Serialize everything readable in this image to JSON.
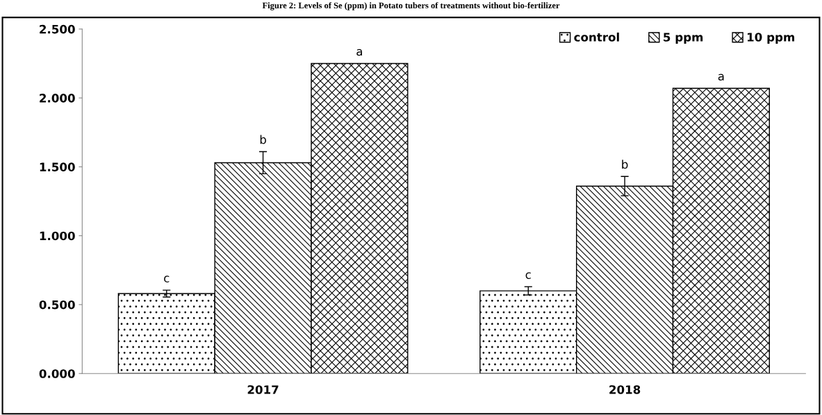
{
  "chart_data": {
    "type": "bar",
    "title": "Figure 2: Levels of Se (ppm) in Potato tubers of treatments without bio-fertilizer",
    "categories": [
      "2017",
      "2018"
    ],
    "series": [
      {
        "name": "control",
        "color": "#000000",
        "values": [
          0.58,
          0.6
        ],
        "errors": [
          0.025,
          0.03
        ],
        "value_labels": [
          "c",
          "c"
        ]
      },
      {
        "name": "5 ppm",
        "color": "#000000",
        "values": [
          1.53,
          1.36
        ],
        "errors": [
          0.08,
          0.07
        ],
        "value_labels": [
          "b",
          "b"
        ]
      },
      {
        "name": "10 ppm",
        "color": "#000000",
        "values": [
          2.25,
          2.07
        ],
        "value_labels": [
          "a",
          "a"
        ]
      }
    ],
    "ylim": [
      0,
      2.5
    ],
    "yticks": [
      {
        "value": 0,
        "label": "0.000"
      },
      {
        "value": 0.5,
        "label": "0.500"
      },
      {
        "value": 1,
        "label": "1.000"
      },
      {
        "value": 1.5,
        "label": "1.500"
      },
      {
        "value": 2,
        "label": "2.000"
      },
      {
        "value": 2.5,
        "label": "2.500"
      }
    ],
    "grid": false,
    "legend": "top right"
  }
}
